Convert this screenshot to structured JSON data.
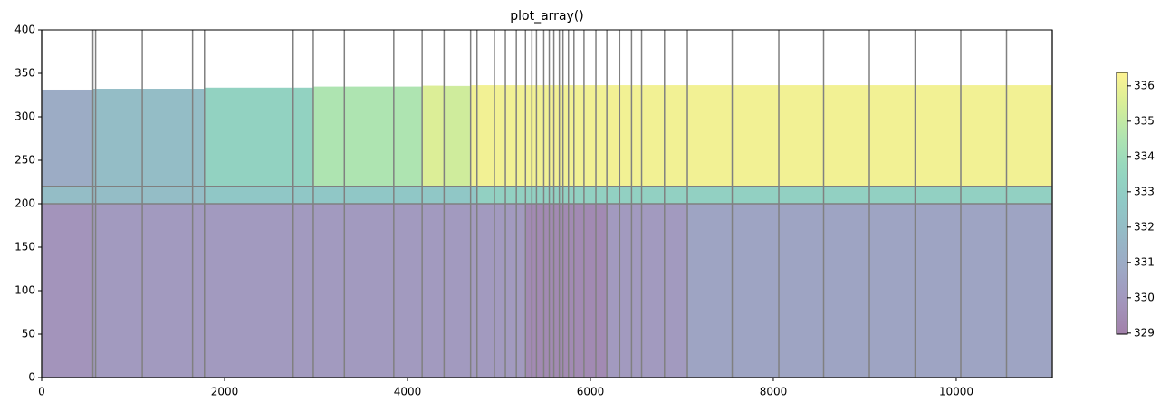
{
  "chart_data": {
    "type": "xsection",
    "title": "plot_array()",
    "edges": [
      0,
      560,
      590,
      1100,
      1650,
      1780,
      2750,
      2970,
      3310,
      3850,
      4160,
      4400,
      4690,
      4760,
      4950,
      5070,
      5190,
      5290,
      5360,
      5410,
      5490,
      5550,
      5600,
      5660,
      5700,
      5760,
      5820,
      5930,
      6060,
      6180,
      6320,
      6450,
      6560,
      6810,
      7060,
      7550,
      8060,
      8550,
      9050,
      9550,
      10050,
      10550,
      11050
    ],
    "layer_bottoms": [
      220,
      200,
      0
    ],
    "layers": [
      {
        "values": [
          331.0,
          332.0,
          332.0,
          332.0,
          332.0,
          333.3,
          333.3,
          334.5,
          334.5,
          334.5,
          335.6,
          335.3,
          336.1,
          336.1,
          336.1,
          336.1,
          336.1,
          336.1,
          336.1,
          336.1,
          336.1,
          336.1,
          336.1,
          336.1,
          336.1,
          336.1,
          336.1,
          336.1,
          336.1,
          336.1,
          336.1,
          336.1,
          336.1,
          336.1,
          336.1,
          336.1,
          336.1,
          336.1,
          336.1,
          336.1,
          336.1,
          336.1
        ]
      },
      {
        "values": [
          332.0,
          332.0,
          332.0,
          332.0,
          332.0,
          332.6,
          332.6,
          332.6,
          332.6,
          332.6,
          332.6,
          332.6,
          332.6,
          333.2,
          333.2,
          333.2,
          333.2,
          333.2,
          333.2,
          333.2,
          333.2,
          333.2,
          333.2,
          333.2,
          333.2,
          333.2,
          333.2,
          333.2,
          333.2,
          333.2,
          333.2,
          333.2,
          333.2,
          333.2,
          333.2,
          333.2,
          333.2,
          333.2,
          333.2,
          333.2,
          333.2,
          333.2
        ]
      },
      {
        "values": [
          329.8,
          330.1,
          330.1,
          330.1,
          330.1,
          330.1,
          330.1,
          330.1,
          330.1,
          330.1,
          330.1,
          330.1,
          330.1,
          330.1,
          330.1,
          330.1,
          330.1,
          329.4,
          329.4,
          329.4,
          329.4,
          329.4,
          329.4,
          329.4,
          329.4,
          329.4,
          329.4,
          329.4,
          329.4,
          330.1,
          330.1,
          330.1,
          330.1,
          330.1,
          330.6,
          330.6,
          330.6,
          330.6,
          330.6,
          330.6,
          330.6,
          330.6
        ]
      }
    ],
    "colormap": "viridis",
    "alpha": 0.5,
    "edge_color": "#808080",
    "xlim": [
      0,
      11050
    ],
    "xticks": [
      0,
      2000,
      4000,
      6000,
      8000,
      10000
    ],
    "ylim": [
      0,
      400
    ],
    "yticks": [
      0,
      50,
      100,
      150,
      200,
      250,
      300,
      350,
      400
    ],
    "clim": [
      328.97,
      336.38
    ],
    "cticks": [
      329,
      330,
      331,
      332,
      333,
      334,
      335,
      336
    ]
  }
}
